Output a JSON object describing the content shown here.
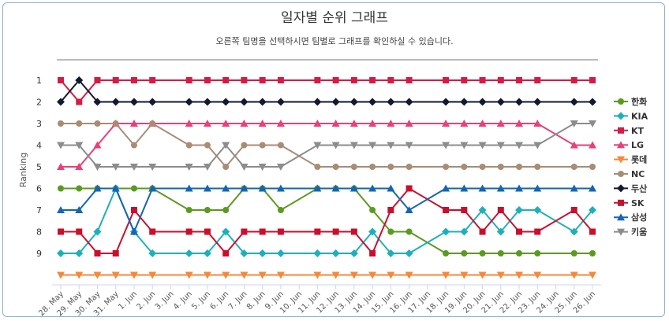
{
  "chart_data": {
    "type": "line",
    "title": "일자별 순위 그래프",
    "subtitle": "오른쪽 팀명을 선택하시면 팀별로 그래프를 확인하실 수 있습니다.",
    "ylabel": "Ranking",
    "xlabel": "",
    "ylim": [
      1,
      9
    ],
    "y_reversed": true,
    "y_ticks": [
      "1",
      "2",
      "3",
      "4",
      "5",
      "6",
      "7",
      "8",
      "9"
    ],
    "legend_position": "right",
    "grid": false,
    "x": [
      "28. May",
      "29. May",
      "30. May",
      "31. May",
      "1. Jun",
      "2. Jun",
      "3. Jun",
      "4. Jun",
      "5. Jun",
      "6. Jun",
      "7. Jun",
      "8. Jun",
      "9. Jun",
      "10. Jun",
      "11. Jun",
      "12. Jun",
      "13. Jun",
      "14. Jun",
      "15. Jun",
      "16. Jun",
      "17. Jun",
      "18. Jun",
      "19. Jun",
      "20. Jun",
      "21. Jun",
      "22. Jun",
      "23. Jun",
      "24. Jun",
      "25. Jun",
      "26. Jun"
    ],
    "series": [
      {
        "name": "한화",
        "color": "#5b9a1f",
        "marker": "circle",
        "values": [
          6,
          6,
          6,
          6,
          6,
          6,
          null,
          7,
          7,
          7,
          6,
          6,
          7,
          null,
          6,
          6,
          6,
          7,
          8,
          8,
          null,
          9,
          9,
          9,
          9,
          9,
          9,
          null,
          9,
          9
        ]
      },
      {
        "name": "KIA",
        "color": "#1eb0b8",
        "marker": "diamond",
        "values": [
          9,
          9,
          8,
          6,
          8,
          9,
          null,
          9,
          9,
          8,
          9,
          9,
          9,
          null,
          9,
          9,
          9,
          8,
          9,
          9,
          null,
          8,
          8,
          7,
          8,
          7,
          7,
          null,
          8,
          7
        ]
      },
      {
        "name": "KT",
        "color": "#d61a46",
        "marker": "square",
        "values": [
          1,
          2,
          1,
          1,
          1,
          1,
          null,
          1,
          1,
          1,
          1,
          1,
          1,
          null,
          1,
          1,
          1,
          1,
          1,
          1,
          null,
          1,
          1,
          1,
          1,
          1,
          1,
          null,
          1,
          1
        ]
      },
      {
        "name": "LG",
        "color": "#e8407a",
        "marker": "triangle",
        "values": [
          5,
          5,
          4,
          3,
          3,
          3,
          null,
          3,
          3,
          3,
          3,
          3,
          3,
          null,
          3,
          3,
          3,
          3,
          3,
          3,
          null,
          3,
          3,
          3,
          3,
          3,
          3,
          null,
          4,
          4
        ]
      },
      {
        "name": "롯데",
        "color": "#f5883a",
        "marker": "triangle-down",
        "values": [
          10,
          10,
          10,
          10,
          10,
          10,
          null,
          10,
          10,
          10,
          10,
          10,
          10,
          null,
          10,
          10,
          10,
          10,
          10,
          10,
          null,
          10,
          10,
          10,
          10,
          10,
          10,
          null,
          10,
          10
        ]
      },
      {
        "name": "NC",
        "color": "#a88c76",
        "marker": "circle",
        "values": [
          3,
          3,
          3,
          3,
          4,
          3,
          null,
          4,
          4,
          5,
          4,
          4,
          4,
          null,
          5,
          5,
          5,
          5,
          5,
          5,
          null,
          5,
          5,
          5,
          5,
          5,
          5,
          null,
          5,
          5
        ]
      },
      {
        "name": "두산",
        "color": "#111a2e",
        "marker": "diamond",
        "values": [
          2,
          1,
          2,
          2,
          2,
          2,
          null,
          2,
          2,
          2,
          2,
          2,
          2,
          null,
          2,
          2,
          2,
          2,
          2,
          2,
          null,
          2,
          2,
          2,
          2,
          2,
          2,
          null,
          2,
          2
        ]
      },
      {
        "name": "SK",
        "color": "#c8102e",
        "marker": "square",
        "values": [
          8,
          8,
          9,
          9,
          7,
          8,
          null,
          8,
          8,
          9,
          8,
          8,
          8,
          null,
          8,
          8,
          8,
          9,
          7,
          6,
          null,
          7,
          7,
          8,
          7,
          8,
          8,
          null,
          7,
          8
        ]
      },
      {
        "name": "삼성",
        "color": "#1565b0",
        "marker": "triangle",
        "values": [
          7,
          7,
          6,
          6,
          8,
          6,
          null,
          6,
          6,
          6,
          6,
          6,
          6,
          null,
          6,
          6,
          6,
          6,
          6,
          7,
          null,
          6,
          6,
          6,
          6,
          6,
          6,
          null,
          6,
          6
        ]
      },
      {
        "name": "키움",
        "color": "#8c8c8c",
        "marker": "triangle-down",
        "values": [
          4,
          4,
          5,
          5,
          5,
          5,
          null,
          5,
          5,
          4,
          5,
          5,
          5,
          null,
          4,
          4,
          4,
          4,
          4,
          4,
          null,
          4,
          4,
          4,
          4,
          4,
          4,
          null,
          3,
          3
        ]
      }
    ]
  }
}
